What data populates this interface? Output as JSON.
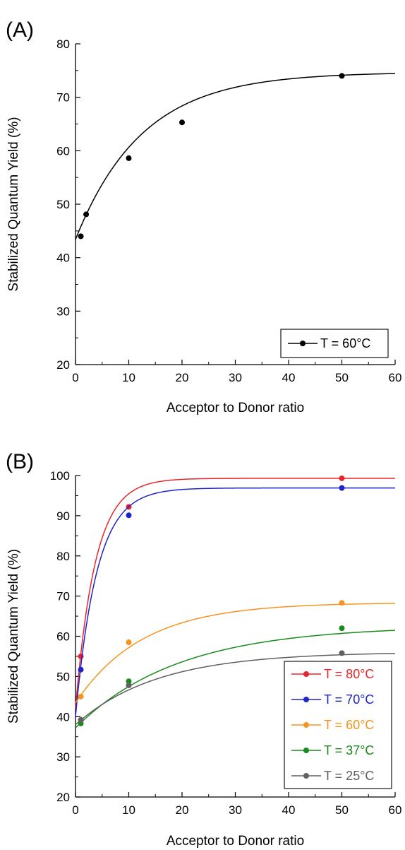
{
  "chart_data": [
    {
      "type": "scatter",
      "panel_label": "(A)",
      "xlabel": "Acceptor to Donor ratio",
      "ylabel": "Stabilized Quantum Yield  (%)",
      "xlim": [
        0,
        60
      ],
      "ylim": [
        20,
        80
      ],
      "xticks": [
        0,
        10,
        20,
        30,
        40,
        50,
        60
      ],
      "yticks": [
        20,
        30,
        40,
        50,
        60,
        70,
        80
      ],
      "legend_position": "bottom-right",
      "series": [
        {
          "name": "T = 60°C",
          "color": "#000000",
          "x": [
            1,
            2,
            10,
            20,
            50
          ],
          "y": [
            44.0,
            48.1,
            58.6,
            65.3,
            74.0
          ],
          "fit": {
            "a": 43.4,
            "b": 31.3,
            "k": 0.08
          }
        }
      ]
    },
    {
      "type": "scatter",
      "panel_label": "(B)",
      "xlabel": "Acceptor to Donor ratio",
      "ylabel": "Stabilized Quantum Yield  (%)",
      "xlim": [
        0,
        60
      ],
      "ylim": [
        20,
        100
      ],
      "xticks": [
        0,
        10,
        20,
        30,
        40,
        50,
        60
      ],
      "yticks": [
        20,
        30,
        40,
        50,
        60,
        70,
        80,
        90,
        100
      ],
      "legend_position": "bottom-right",
      "series": [
        {
          "name": "T = 80°C",
          "color": "#e8252a",
          "x": [
            1,
            10,
            50
          ],
          "y": [
            55.0,
            92.2,
            99.3
          ],
          "fit": {
            "a": 42.0,
            "b": 57.3,
            "k": 0.27
          }
        },
        {
          "name": "T = 70°C",
          "color": "#1f24c9",
          "x": [
            1,
            10,
            50
          ],
          "y": [
            51.7,
            90.1,
            96.9
          ],
          "fit": {
            "a": 40.0,
            "b": 56.9,
            "k": 0.25
          }
        },
        {
          "name": "T = 60°C",
          "color": "#f7931e",
          "x": [
            1,
            10,
            50
          ],
          "y": [
            45.0,
            58.5,
            68.3
          ],
          "fit": {
            "a": 43.4,
            "b": 25.0,
            "k": 0.08
          }
        },
        {
          "name": "T = 37°C",
          "color": "#1a8a1e",
          "x": [
            1,
            10,
            50
          ],
          "y": [
            38.3,
            48.8,
            62.0
          ],
          "fit": {
            "a": 37.2,
            "b": 25.4,
            "k": 0.052
          }
        },
        {
          "name": "T = 25°C",
          "color": "#606060",
          "x": [
            1,
            10,
            50
          ],
          "y": [
            39.2,
            47.8,
            55.8
          ],
          "fit": {
            "a": 38.0,
            "b": 18.1,
            "k": 0.065
          }
        }
      ]
    }
  ]
}
